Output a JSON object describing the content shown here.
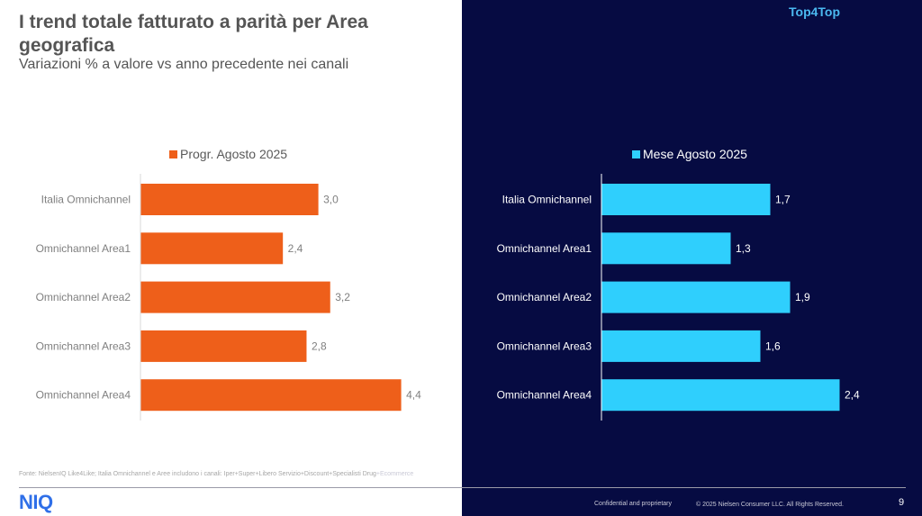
{
  "header": {
    "title": "I trend totale fatturato a parità per Area geografica",
    "subtitle": "Variazioni % a valore vs anno precedente nei canali",
    "brand_tag": "Top4Top"
  },
  "colors": {
    "left_series": "#ee5f1a",
    "right_series": "#2fcffd",
    "dark_background": "#060b42",
    "brand_tag": "#4bb8f0",
    "logo": "#2f6fe8"
  },
  "chart_data": [
    {
      "type": "bar",
      "orientation": "horizontal",
      "title": "",
      "legend": "Progr. Agosto 2025",
      "legend_position": "top",
      "categories": [
        "Italia Omnichannel",
        "Omnichannel Area1",
        "Omnichannel Area2",
        "Omnichannel Area3",
        "Omnichannel Area4"
      ],
      "values": [
        3.0,
        2.4,
        3.2,
        2.8,
        4.4
      ],
      "value_labels": [
        "3,0",
        "2,4",
        "3,2",
        "2,8",
        "4,4"
      ],
      "xlabel": "",
      "ylabel": "",
      "xlim": [
        0,
        5.3
      ],
      "grid": false
    },
    {
      "type": "bar",
      "orientation": "horizontal",
      "title": "",
      "legend": "Mese Agosto 2025",
      "legend_position": "top",
      "categories": [
        "Italia Omnichannel",
        "Omnichannel Area1",
        "Omnichannel Area2",
        "Omnichannel Area3",
        "Omnichannel Area4"
      ],
      "values": [
        1.7,
        1.3,
        1.9,
        1.6,
        2.4
      ],
      "value_labels": [
        "1,7",
        "1,3",
        "1,9",
        "1,6",
        "2,4"
      ],
      "xlabel": "",
      "ylabel": "",
      "xlim": [
        0,
        3.1
      ],
      "grid": false
    }
  ],
  "footer": {
    "source_main": "Fonte: NielsenIQ Like4Like; Italia Omnichannel e Aree includono i canali: Iper+Super+Libero Servizio+Discount+Specialisti Drug",
    "source_tail": "+Ecommerce",
    "logo": "NIQ",
    "confidential": "Confidential and proprietary",
    "copyright": "© 2025 Nielsen Consumer LLC. All Rights Reserved.",
    "page_number": "9"
  }
}
